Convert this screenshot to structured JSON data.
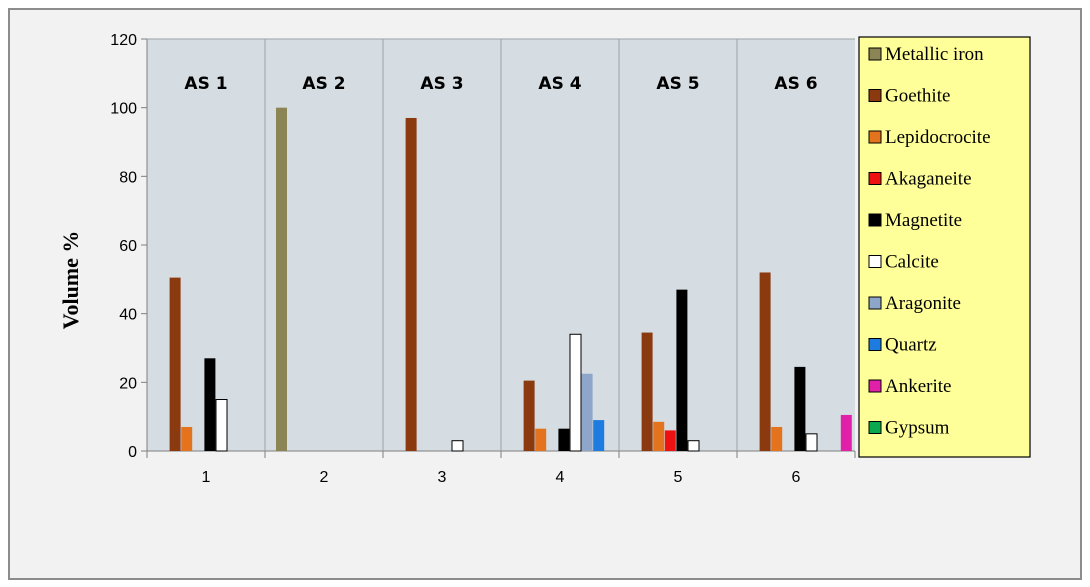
{
  "chart_data": {
    "type": "bar",
    "ylabel": "Volume %",
    "xlabel": "",
    "ylim": [
      0,
      120
    ],
    "yticks": [
      "0",
      "20",
      "40",
      "60",
      "80",
      "100",
      "120"
    ],
    "categories": [
      "1",
      "2",
      "3",
      "4",
      "5",
      "6"
    ],
    "panel_labels": [
      "AS 1",
      "AS 2",
      "AS 3",
      "AS 4",
      "AS 5",
      "AS 6"
    ],
    "legend_position": "right",
    "grid": false,
    "series": [
      {
        "name": "Metallic iron",
        "color": "#8b8455",
        "values": [
          0,
          100,
          0,
          0,
          0,
          0
        ]
      },
      {
        "name": "Goethite",
        "color": "#8b3a0f",
        "values": [
          50.5,
          0,
          97,
          20.5,
          34.5,
          52
        ]
      },
      {
        "name": "Lepidocrocite",
        "color": "#e3741d",
        "values": [
          7,
          0,
          0,
          6.5,
          8.5,
          7
        ]
      },
      {
        "name": "Akaganeite",
        "color": "#ee1111",
        "values": [
          0,
          0,
          0,
          0,
          6,
          0
        ]
      },
      {
        "name": "Magnetite",
        "color": "#000000",
        "values": [
          27,
          0,
          0,
          6.5,
          47,
          24.5
        ]
      },
      {
        "name": "Calcite",
        "color": "#ffffff",
        "values": [
          15,
          0,
          3,
          34,
          3,
          5
        ]
      },
      {
        "name": "Aragonite",
        "color": "#8ea6c9",
        "values": [
          0,
          0,
          0,
          22.5,
          0,
          0
        ]
      },
      {
        "name": "Quartz",
        "color": "#1e7be0",
        "values": [
          0,
          0,
          0,
          9,
          0,
          0
        ]
      },
      {
        "name": "Ankerite",
        "color": "#e020a8",
        "values": [
          0,
          0,
          0,
          0,
          0,
          10.5
        ]
      },
      {
        "name": "Gypsum",
        "color": "#0aa84f",
        "values": [
          0,
          0,
          0,
          0,
          0,
          0
        ]
      }
    ]
  }
}
